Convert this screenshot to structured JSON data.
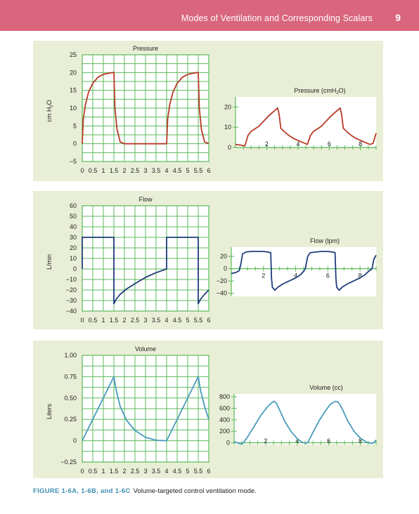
{
  "header": {
    "title": "Modes of Ventilation and Corresponding Scalars",
    "page_number": "9"
  },
  "caption": {
    "label": "FIGURE 1-6A, 1-6B, and 1-6C",
    "text": "Volume-targeted control ventilation mode."
  },
  "colors": {
    "header_band": "#d9667c",
    "panel_bg": "#e9efd6",
    "grid": "#5cb85c",
    "pressure_trace": "#b83a26",
    "flow_trace": "#1f3d7a",
    "volume_trace": "#4a9bbd"
  },
  "chart_data": [
    {
      "panel": "A-left",
      "type": "line",
      "title": "Pressure",
      "ylabel_main": "cm H",
      "ylabel_sub": "2",
      "ylabel_tail": "O",
      "xlim": [
        0,
        6
      ],
      "ylim": [
        -5,
        25
      ],
      "x_ticks": [
        "0",
        "0.5",
        "1",
        "1.5",
        "2",
        "2.5",
        "3",
        "3.5",
        "4",
        "4.5",
        "5",
        "5.5",
        "6"
      ],
      "y_ticks": [
        "25",
        "20",
        "15",
        "10",
        "5",
        "0",
        "−5"
      ],
      "y_tick_values": [
        25,
        20,
        15,
        10,
        5,
        0,
        -5
      ],
      "x": [
        0,
        0.05,
        0.15,
        0.3,
        0.5,
        0.75,
        1,
        1.25,
        1.45,
        1.5,
        1.55,
        1.65,
        1.8,
        2,
        2.5,
        3,
        3.5,
        4,
        4.05,
        4.15,
        4.3,
        4.5,
        4.75,
        5,
        5.25,
        5.45,
        5.5,
        5.55,
        5.65,
        5.8,
        6
      ],
      "y": [
        0,
        7,
        11,
        14.5,
        17,
        18.7,
        19.5,
        19.8,
        20,
        20,
        10,
        4,
        0.5,
        0,
        0,
        0,
        0,
        0,
        7,
        11,
        14.5,
        17,
        18.7,
        19.5,
        19.8,
        20,
        20,
        10,
        4,
        0.5,
        0
      ]
    },
    {
      "panel": "A-right",
      "type": "line",
      "title": "Pressure (cmH",
      "title_sub": "2",
      "title_tail": "O)",
      "xlim": [
        0,
        9
      ],
      "ylim": [
        0,
        25
      ],
      "x_ticks": [
        "2",
        "4",
        "6",
        "8"
      ],
      "x_tick_values": [
        2,
        4,
        6,
        8
      ],
      "y_ticks": [
        "20",
        "10",
        "0"
      ],
      "y_tick_values": [
        20,
        10,
        0
      ],
      "x": [
        0,
        0.3,
        0.6,
        0.8,
        1.0,
        1.2,
        1.5,
        1.8,
        2.1,
        2.4,
        2.7,
        2.8,
        2.9,
        3.1,
        3.4,
        3.7,
        4.0,
        4.3,
        4.6,
        4.8,
        5.0,
        5.2,
        5.5,
        5.8,
        6.1,
        6.4,
        6.7,
        6.8,
        6.9,
        7.1,
        7.4,
        7.7,
        8.0,
        8.3,
        8.6,
        8.8,
        9.0
      ],
      "y": [
        1.5,
        1.2,
        0.8,
        6,
        8,
        9,
        10.5,
        13,
        15.5,
        17.5,
        19.5,
        16,
        9.5,
        8,
        6,
        4.5,
        3.5,
        2.5,
        1.5,
        6,
        8,
        9,
        10.5,
        13,
        15.5,
        17.5,
        19.5,
        16,
        9.5,
        8,
        6,
        4.5,
        3.5,
        2.5,
        1.5,
        2,
        7
      ]
    },
    {
      "panel": "B-left",
      "type": "line",
      "title": "Flow",
      "ylabel": "L/min",
      "xlim": [
        0,
        6
      ],
      "ylim": [
        -40,
        60
      ],
      "x_ticks": [
        "0",
        "0.5",
        "1",
        "1.5",
        "2",
        "2.5",
        "3",
        "3.5",
        "4",
        "4.5",
        "5",
        "5.5",
        "6"
      ],
      "y_ticks": [
        "60",
        "50",
        "40",
        "30",
        "20",
        "10",
        "0",
        "−10",
        "−20",
        "−30",
        "−40"
      ],
      "y_tick_values": [
        60,
        50,
        40,
        30,
        20,
        10,
        0,
        -10,
        -20,
        -30,
        -40
      ],
      "x": [
        0,
        0,
        1.5,
        1.5,
        1.6,
        1.8,
        2.1,
        2.5,
        3.0,
        3.5,
        4.0,
        4.0,
        5.5,
        5.5,
        5.6,
        5.8,
        6.0
      ],
      "y": [
        0,
        30,
        30,
        -33,
        -29,
        -24,
        -19,
        -14,
        -8,
        -3.5,
        0,
        30,
        30,
        -33,
        -29,
        -24,
        -20
      ]
    },
    {
      "panel": "B-right",
      "type": "line",
      "title": "Flow (lpm)",
      "xlim": [
        0,
        9
      ],
      "ylim": [
        -45,
        35
      ],
      "x_ticks": [
        "2",
        "4",
        "6",
        "8"
      ],
      "x_tick_values": [
        2,
        4,
        6,
        8
      ],
      "y_ticks": [
        "20",
        "0",
        "−20",
        "−40"
      ],
      "y_tick_values": [
        20,
        0,
        -20,
        -40
      ],
      "x": [
        0,
        0.3,
        0.5,
        0.6,
        0.7,
        0.9,
        1.2,
        1.6,
        2.0,
        2.3,
        2.45,
        2.5,
        2.55,
        2.7,
        2.9,
        3.2,
        3.6,
        4.0,
        4.3,
        4.5,
        4.6,
        4.75,
        4.9,
        5.2,
        5.6,
        6.0,
        6.3,
        6.45,
        6.5,
        6.55,
        6.7,
        6.9,
        7.2,
        7.6,
        8.0,
        8.3,
        8.5,
        8.6,
        8.75,
        8.85,
        9.0
      ],
      "y": [
        -8,
        -6,
        -3,
        8,
        24,
        27,
        28,
        28,
        28,
        27,
        26,
        -15,
        -30,
        -35,
        -30,
        -25,
        -20,
        -15,
        -10,
        -4,
        0,
        20,
        26,
        27,
        28,
        28,
        27,
        26,
        -15,
        -30,
        -35,
        -30,
        -25,
        -20,
        -15,
        -10,
        -5,
        -3,
        0,
        15,
        22
      ]
    },
    {
      "panel": "C-left",
      "type": "line",
      "title": "Volume",
      "ylabel": "Liters",
      "xlim": [
        0,
        6
      ],
      "ylim": [
        -0.25,
        1.0
      ],
      "x_ticks": [
        "0",
        "0.5",
        "1",
        "1.5",
        "2",
        "2.5",
        "3",
        "3.5",
        "4",
        "4.5",
        "5",
        "5.5",
        "6"
      ],
      "y_ticks": [
        "1.00",
        "0.75",
        "0.50",
        "0.25",
        "0",
        "−0.25"
      ],
      "y_tick_values": [
        1.0,
        0.75,
        0.5,
        0.25,
        0,
        -0.25
      ],
      "x": [
        0,
        1.5,
        1.6,
        1.8,
        2.1,
        2.5,
        3.0,
        3.5,
        4.0,
        5.5,
        5.6,
        5.8,
        6.0
      ],
      "y": [
        0,
        0.75,
        0.6,
        0.4,
        0.24,
        0.12,
        0.04,
        0.005,
        0,
        0.75,
        0.6,
        0.4,
        0.25
      ]
    },
    {
      "panel": "C-right",
      "type": "line",
      "title": "Volume (cc)",
      "xlim": [
        0,
        9
      ],
      "ylim": [
        -30,
        850
      ],
      "x_ticks": [
        "2",
        "4",
        "6",
        "8"
      ],
      "x_tick_values": [
        2,
        4,
        6,
        8
      ],
      "y_ticks": [
        "800",
        "600",
        "400",
        "200",
        "0"
      ],
      "y_tick_values": [
        800,
        600,
        400,
        200,
        0
      ],
      "x": [
        0,
        0.3,
        0.5,
        0.6,
        0.9,
        1.3,
        1.7,
        2.1,
        2.4,
        2.55,
        2.7,
        2.9,
        3.2,
        3.6,
        4.0,
        4.3,
        4.55,
        4.7,
        5.0,
        5.4,
        5.8,
        6.1,
        6.4,
        6.55,
        6.7,
        6.9,
        7.2,
        7.6,
        8.0,
        8.4,
        8.7,
        8.85,
        9.0
      ],
      "y": [
        20,
        -10,
        -20,
        5,
        120,
        300,
        480,
        620,
        700,
        720,
        680,
        560,
        380,
        200,
        70,
        10,
        -10,
        20,
        180,
        390,
        560,
        670,
        720,
        715,
        670,
        560,
        380,
        200,
        80,
        10,
        -10,
        0,
        50
      ]
    }
  ]
}
